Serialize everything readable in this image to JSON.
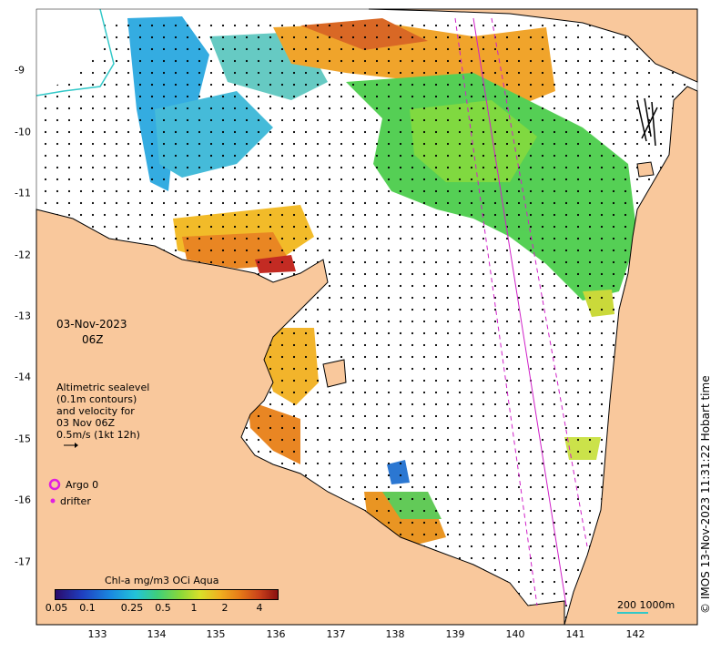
{
  "date_line1": "03-Nov-2023",
  "date_line2": "06Z",
  "legend_text": [
    "Altimetric sealevel",
    "(0.1m contours)",
    "and velocity for",
    "03 Nov 06Z",
    "0.5m/s (1kt 12h)"
  ],
  "argo_label": "Argo 0",
  "drifter_label": "drifter",
  "colorbar": {
    "title": "Chl-a mg/m3 OCi Aqua",
    "ticks": [
      "0.05",
      "0.1",
      "0.25",
      "0.5",
      "1",
      "2",
      "4"
    ]
  },
  "scale_label": "200  1000m",
  "credit": "© IMOS 13-Nov-2023 11:31:22 Hobart time",
  "x_ticks": [
    "133",
    "134",
    "135",
    "136",
    "137",
    "138",
    "139",
    "140",
    "141",
    "142"
  ],
  "y_ticks": [
    "-9",
    "-10",
    "-11",
    "-12",
    "-13",
    "-14",
    "-15",
    "-16",
    "-17"
  ],
  "colors": {
    "land": "#f9c89c",
    "ocean": "#ffffff",
    "track": "#d020c8",
    "argo": "#e020e0",
    "scale": "#32c8c8"
  }
}
